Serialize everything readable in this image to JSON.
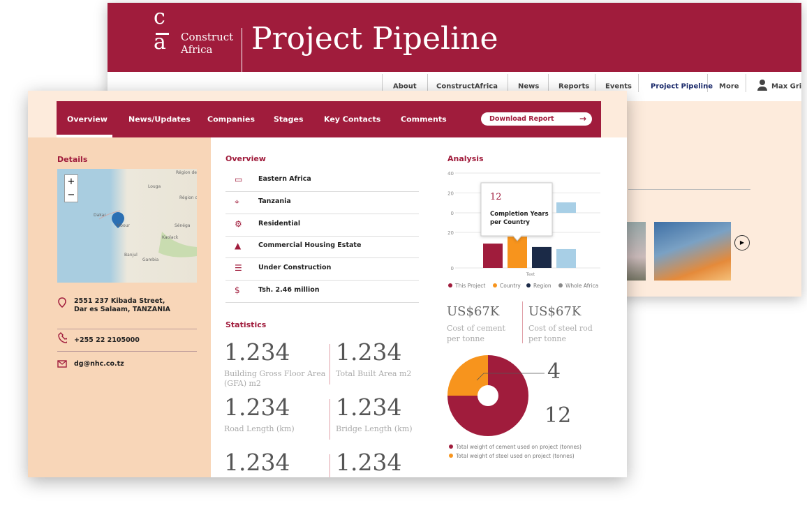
{
  "back_window": {
    "logo": {
      "top": "c",
      "bottom": "a"
    },
    "brand": [
      "Construct",
      "Africa"
    ],
    "title": "Project Pipeline",
    "nav": [
      "About",
      "ConstructAfrica",
      "News",
      "Reports",
      "Events",
      "Project Pipeline",
      "More"
    ],
    "user": "Max Griffi"
  },
  "front_window": {
    "tabs": [
      "Overview",
      "News/Updates",
      "Companies",
      "Stages",
      "Key Contacts",
      "Comments"
    ],
    "download": "Download Report",
    "details": {
      "heading": "Details",
      "map_labels": [
        "Louga",
        "Dakar",
        "Mbour",
        "Sénéga",
        "Kaolack",
        "Banjul",
        "Gambia",
        "Région de Saint-Louis",
        "Région de Diourbel"
      ],
      "address": [
        "2551 237 Kibada Street,",
        "Dar es Salaam, TANZANIA"
      ],
      "phone": "+255 22 2105000",
      "email": "dg@nhc.co.tz"
    },
    "overview": {
      "heading": "Overview",
      "items": [
        "Eastern Africa",
        "Tanzania",
        "Residential",
        "Commercial Housing Estate",
        "Under Construction",
        "Tsh. 2.46 million"
      ]
    },
    "statistics": {
      "heading": "Statistics",
      "items": [
        {
          "value": "1.234",
          "label": [
            "Building Gross Floor Area",
            "(GFA) m2"
          ]
        },
        {
          "value": "1.234",
          "label": [
            "Total Built Area m2"
          ]
        },
        {
          "value": "1.234",
          "label": [
            "Road Length (km)"
          ]
        },
        {
          "value": "1.234",
          "label": [
            "Bridge Length (km)"
          ]
        },
        {
          "value": "1.234"
        },
        {
          "value": "1.234"
        }
      ]
    },
    "analysis": {
      "heading": "Analysis",
      "charts": [
        {
          "type": "bar",
          "ylim": [
            0,
            40
          ],
          "yticks": [
            0,
            20,
            40
          ],
          "values": [
            10.5
          ],
          "color": "#a8cfe6"
        },
        {
          "type": "bar",
          "ylim": [
            0,
            20
          ],
          "yticks": [
            0,
            20
          ],
          "x_label": "Text",
          "series": [
            {
              "name": "This Project",
              "color": "#a01c3c",
              "values": [
                13.7
              ]
            },
            {
              "name": "Country",
              "color": "#f7941d",
              "values": [
                17.6
              ]
            },
            {
              "name": "Region",
              "color": "#1b2a47",
              "values": [
                11.8
              ]
            },
            {
              "name": "Whole Africa",
              "color": "#a8cfe6",
              "values": [
                10.6
              ]
            }
          ],
          "tooltip": {
            "value": "12",
            "text": [
              "Completion Years",
              "per Country"
            ]
          }
        }
      ],
      "legend_extra_color": "#888",
      "costs": [
        {
          "value": "US$67K",
          "label": [
            "Cost of cement",
            "per tonne"
          ]
        },
        {
          "value": "US$67K",
          "label": [
            "Cost of steel rod",
            "per tonne"
          ]
        }
      ],
      "donut": {
        "type": "pie",
        "series": [
          {
            "name": "Total weight of cement used on project (tonnes)",
            "color": "#a01c3c",
            "value": 12
          },
          {
            "name": "Total weight of steel used on project (tonnes)",
            "color": "#f7941d",
            "value": 4
          }
        ]
      }
    }
  }
}
